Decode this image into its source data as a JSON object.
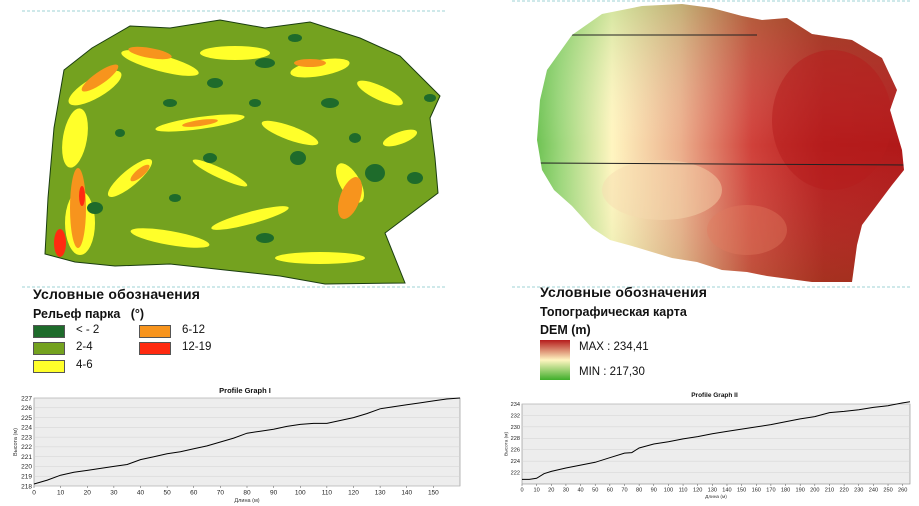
{
  "slope_map": {
    "legend_heading": "Условные обозначения",
    "legend_title": "Рельеф парка   (°)",
    "classes": [
      {
        "label": "< - 2",
        "color": "#1e6b2b"
      },
      {
        "label": "2-4",
        "color": "#74a21f"
      },
      {
        "label": "4-6",
        "color": "#ffff2a"
      },
      {
        "label": "6-12",
        "color": "#f7941d"
      },
      {
        "label": "12-19",
        "color": "#ff2a10"
      }
    ]
  },
  "dem_map": {
    "legend_heading": "Условные обозначения",
    "legend_title": "Топографическая карта",
    "legend_sub": "DEM (m)",
    "max_label": "MAX : 234,41",
    "min_label": "MIN : 217,30",
    "colors": {
      "high": "#b51c1c",
      "mid": "#fff5c0",
      "low": "#3fae2a"
    }
  },
  "chart_data": [
    {
      "type": "line",
      "title": "Profile Graph I",
      "xlabel": "Длина (м)",
      "ylabel": "Высота (м)",
      "xlim": [
        0,
        160
      ],
      "ylim": [
        218,
        227
      ],
      "xticks": [
        0,
        10,
        20,
        30,
        40,
        50,
        60,
        70,
        80,
        90,
        100,
        110,
        120,
        130,
        140,
        150
      ],
      "yticks": [
        218,
        219,
        220,
        221,
        222,
        223,
        224,
        225,
        226,
        227
      ],
      "x": [
        0,
        5,
        10,
        15,
        20,
        25,
        30,
        35,
        40,
        45,
        50,
        55,
        60,
        65,
        70,
        75,
        80,
        85,
        90,
        95,
        100,
        105,
        110,
        115,
        120,
        125,
        130,
        135,
        140,
        145,
        150,
        155,
        160
      ],
      "y": [
        218.2,
        218.6,
        219.1,
        219.4,
        219.6,
        219.8,
        220.0,
        220.2,
        220.7,
        221.0,
        221.3,
        221.5,
        221.8,
        222.1,
        222.5,
        222.9,
        223.4,
        223.6,
        223.8,
        224.1,
        224.3,
        224.4,
        224.4,
        224.7,
        225.0,
        225.4,
        225.9,
        226.1,
        226.3,
        226.5,
        226.7,
        226.9,
        227.0
      ]
    },
    {
      "type": "line",
      "title": "Profile Graph II",
      "xlabel": "Длина (м)",
      "ylabel": "Высота (м)",
      "xlim": [
        0,
        265
      ],
      "ylim": [
        220,
        234
      ],
      "xticks": [
        0,
        10,
        20,
        30,
        40,
        50,
        60,
        70,
        80,
        90,
        100,
        110,
        120,
        130,
        140,
        150,
        160,
        170,
        180,
        190,
        200,
        210,
        220,
        230,
        240,
        250,
        260
      ],
      "yticks": [
        222,
        224,
        226,
        228,
        230,
        232,
        234
      ],
      "x": [
        0,
        5,
        10,
        15,
        20,
        30,
        40,
        50,
        60,
        70,
        75,
        80,
        90,
        100,
        110,
        120,
        130,
        140,
        150,
        160,
        170,
        180,
        190,
        200,
        210,
        220,
        230,
        240,
        250,
        260,
        265
      ],
      "y": [
        220.8,
        220.8,
        221.0,
        221.8,
        222.2,
        222.8,
        223.3,
        223.8,
        224.6,
        225.4,
        225.5,
        226.3,
        227.0,
        227.4,
        227.9,
        228.3,
        228.8,
        229.2,
        229.6,
        230.0,
        230.4,
        230.9,
        231.4,
        231.8,
        232.5,
        232.7,
        233.0,
        233.4,
        233.7,
        234.2,
        234.4
      ]
    }
  ]
}
